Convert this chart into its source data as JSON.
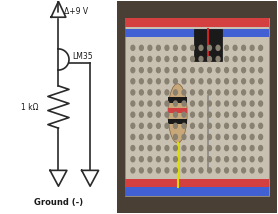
{
  "title": "",
  "background_color": "#ffffff",
  "circuit": {
    "vcc_label": "Δ+9 V",
    "sensor_label": "LM35",
    "resistor_label": "1 kΩ",
    "ground_label": "Ground (-)"
  },
  "photo_placeholder_color": "#8a7a6a",
  "text_color": "#1a1a1a",
  "line_color": "#2a2a2a"
}
